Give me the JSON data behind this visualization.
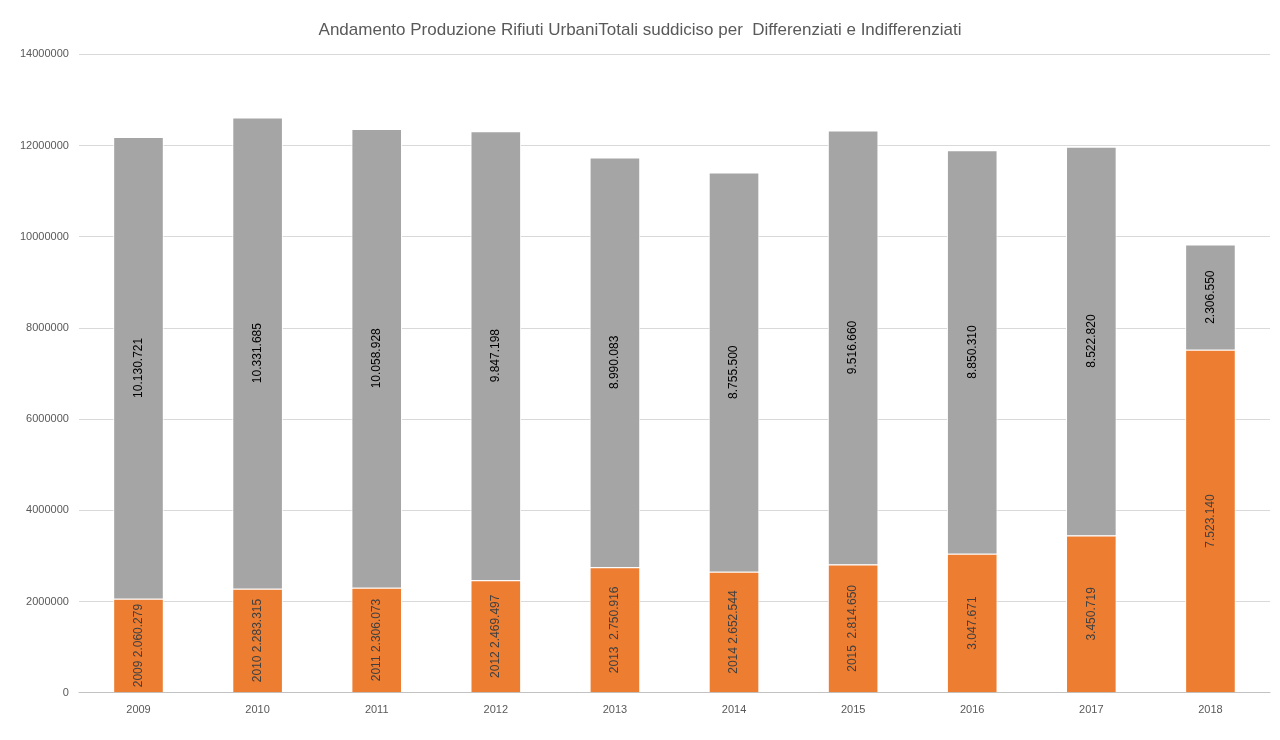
{
  "chart_data": {
    "type": "bar",
    "title": "Andamento Produzione Rifiuti UrbaniTotali suddiciso per  Differenziati e Indifferenziati",
    "categories": [
      "2009",
      "2010",
      "2011",
      "2012",
      "2013",
      "2014",
      "2015",
      "2016",
      "2017",
      "2018"
    ],
    "stacked": true,
    "series": [
      {
        "color": "#ed7d31",
        "values": [
          2060279,
          2283315,
          2306073,
          2469497,
          2750916,
          2652544,
          2814650,
          3047671,
          3450719,
          7523140
        ],
        "value_labels": [
          "2009 2.060.279",
          "2010 2.283.315",
          "2011 2.306.073",
          "2012 2.469.497",
          "2013  2.750.916",
          "2014 2.652.544",
          "2015  2.814.650",
          "3.047.671",
          "3.450.719",
          "7.523.140"
        ]
      },
      {
        "color": "#a5a5a5",
        "values": [
          10130721,
          10331685,
          10058928,
          9847198,
          8990083,
          8755500,
          9516660,
          8850310,
          8522820,
          2306550
        ],
        "value_labels": [
          "10.130.721",
          "10.331.685",
          "10.058.928",
          "9.847.198",
          "8.990.083",
          "8.755.500",
          "9.516.660",
          "8.850.310",
          "8.522.820",
          "2.306.550"
        ]
      }
    ],
    "ylim": [
      0,
      14000000
    ],
    "yticks": [
      0,
      2000000,
      4000000,
      6000000,
      8000000,
      10000000,
      12000000,
      14000000
    ],
    "grid": "y",
    "legend": false
  }
}
